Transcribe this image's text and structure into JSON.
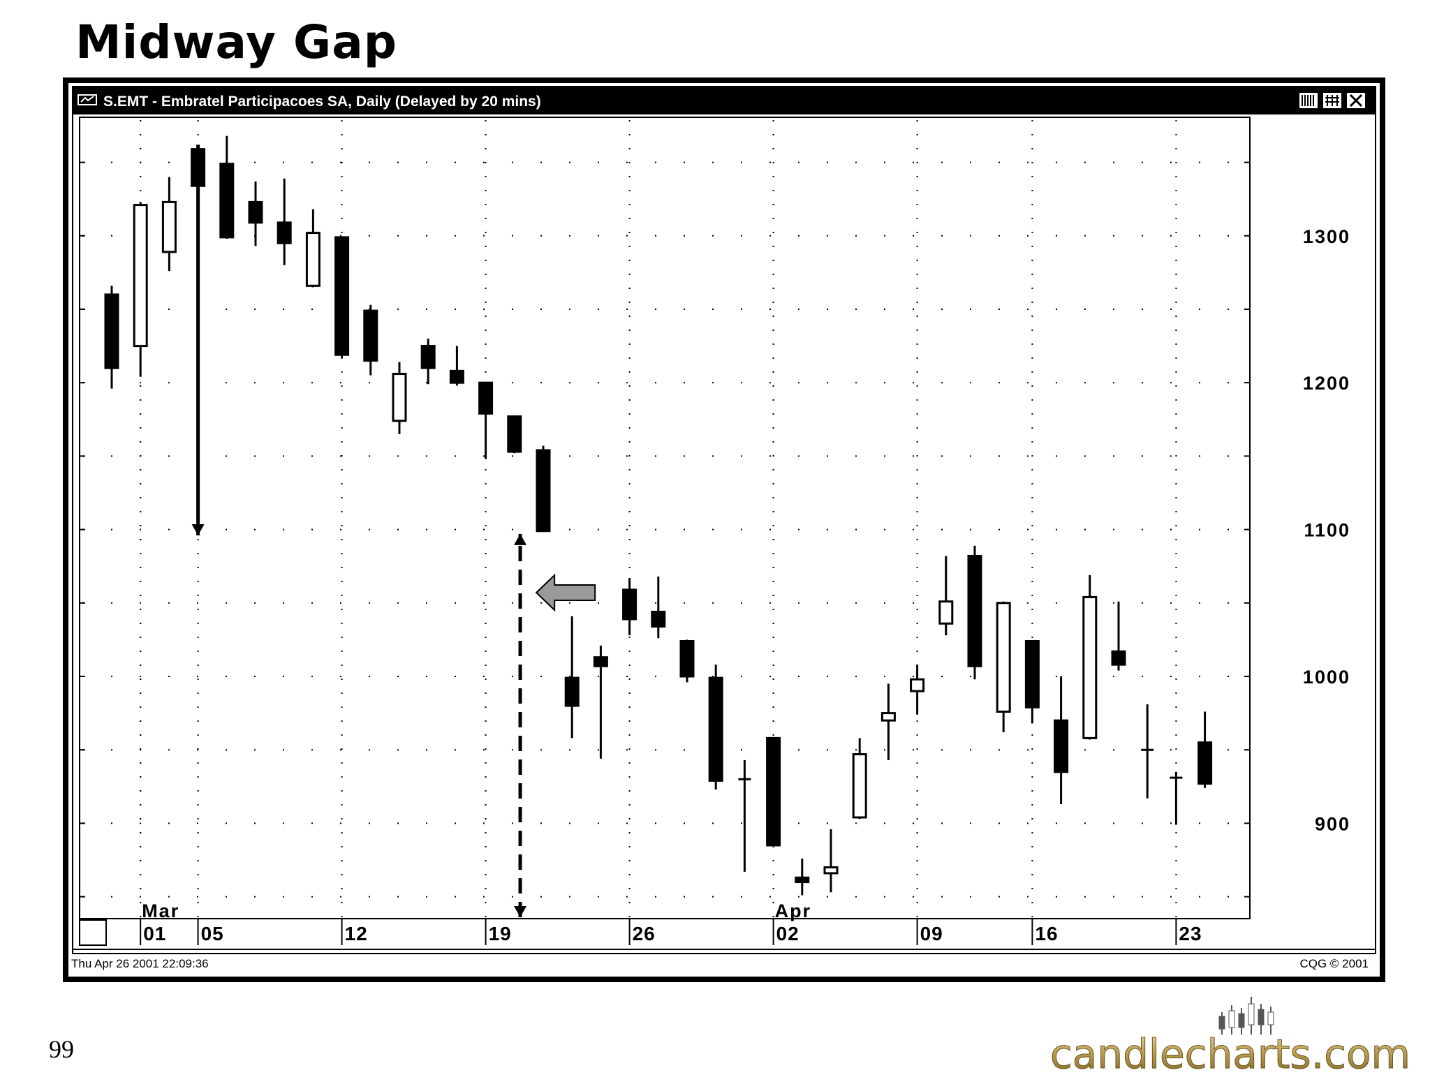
{
  "slide": {
    "title": "Midway Gap",
    "page_number": "99"
  },
  "window": {
    "title": "S.EMT - Embratel Participacoes SA, Daily (Delayed by 20 mins)",
    "timestamp": "Thu Apr 26 2001 22:09:36",
    "copyright": "CQG © 2001",
    "title_icon": "cqg-logo-icon",
    "buttons": [
      "chart-style-button",
      "chart-settings-button",
      "close-window-button"
    ]
  },
  "logo": {
    "text": "candlecharts.com",
    "icon": "candlestick-logo-icon"
  },
  "chart_data": {
    "type": "candlestick",
    "title": "S.EMT - Embratel Participacoes SA, Daily (Delayed by 20 mins)",
    "xlabel": "",
    "ylabel": "",
    "ylim": [
      835,
      1380
    ],
    "y_ticks": [
      900,
      1000,
      1100,
      1200,
      1300
    ],
    "y_tick_labels": [
      "900",
      "1000",
      "1100",
      "1200",
      "1300"
    ],
    "grid": true,
    "x_tick_labels": [
      {
        "label": "01",
        "index": 1
      },
      {
        "label": "05",
        "index": 3
      },
      {
        "label": "12",
        "index": 8
      },
      {
        "label": "19",
        "index": 13
      },
      {
        "label": "26",
        "index": 18
      },
      {
        "label": "02",
        "index": 23
      },
      {
        "label": "09",
        "index": 28
      },
      {
        "label": "16",
        "index": 32
      },
      {
        "label": "23",
        "index": 37
      }
    ],
    "month_labels": [
      {
        "label": "Mar",
        "index": 1
      },
      {
        "label": "Apr",
        "index": 23
      }
    ],
    "candles": [
      {
        "open": 1260,
        "high": 1266,
        "low": 1196,
        "close": 1210
      },
      {
        "open": 1225,
        "high": 1323,
        "low": 1204,
        "close": 1321
      },
      {
        "open": 1289,
        "high": 1340,
        "low": 1276,
        "close": 1323
      },
      {
        "open": 1359,
        "high": 1362,
        "low": 1324,
        "close": 1334
      },
      {
        "open": 1349,
        "high": 1368,
        "low": 1298,
        "close": 1299
      },
      {
        "open": 1323,
        "high": 1337,
        "low": 1293,
        "close": 1309
      },
      {
        "open": 1309,
        "high": 1339,
        "low": 1280,
        "close": 1295
      },
      {
        "open": 1266,
        "high": 1318,
        "low": 1265,
        "close": 1302
      },
      {
        "open": 1299,
        "high": 1299,
        "low": 1217,
        "close": 1219
      },
      {
        "open": 1249,
        "high": 1253,
        "low": 1205,
        "close": 1215
      },
      {
        "open": 1174,
        "high": 1214,
        "low": 1165,
        "close": 1206
      },
      {
        "open": 1225,
        "high": 1230,
        "low": 1199,
        "close": 1210
      },
      {
        "open": 1208,
        "high": 1225,
        "low": 1198,
        "close": 1200
      },
      {
        "open": 1200,
        "high": 1200,
        "low": 1148,
        "close": 1179
      },
      {
        "open": 1177,
        "high": 1177,
        "low": 1152,
        "close": 1153
      },
      {
        "open": 1154,
        "high": 1157,
        "low": 1099,
        "close": 1099
      },
      {
        "open": 999,
        "high": 1041,
        "low": 958,
        "close": 980
      },
      {
        "open": 1013,
        "high": 1021,
        "low": 944,
        "close": 1007
      },
      {
        "open": 1059,
        "high": 1067,
        "low": 1028,
        "close": 1039
      },
      {
        "open": 1044,
        "high": 1068,
        "low": 1026,
        "close": 1034
      },
      {
        "open": 1024,
        "high": 1025,
        "low": 996,
        "close": 1000
      },
      {
        "open": 999,
        "high": 1008,
        "low": 923,
        "close": 929
      },
      {
        "open": 930,
        "high": 943,
        "low": 867,
        "close": 930
      },
      {
        "open": 958,
        "high": 958,
        "low": 885,
        "close": 885
      },
      {
        "open": 863,
        "high": 876,
        "low": 851,
        "close": 860
      },
      {
        "open": 866,
        "high": 896,
        "low": 853,
        "close": 870
      },
      {
        "open": 904,
        "high": 958,
        "low": 903,
        "close": 947
      },
      {
        "open": 970,
        "high": 995,
        "low": 943,
        "close": 975
      },
      {
        "open": 990,
        "high": 1008,
        "low": 974,
        "close": 998
      },
      {
        "open": 1036,
        "high": 1082,
        "low": 1028,
        "close": 1051
      },
      {
        "open": 1082,
        "high": 1089,
        "low": 998,
        "close": 1007
      },
      {
        "open": 976,
        "high": 1051,
        "low": 962,
        "close": 1050
      },
      {
        "open": 1024,
        "high": 1024,
        "low": 968,
        "close": 979
      },
      {
        "open": 970,
        "high": 1000,
        "low": 913,
        "close": 935
      },
      {
        "open": 958,
        "high": 1069,
        "low": 957,
        "close": 1054
      },
      {
        "open": 1017,
        "high": 1051,
        "low": 1004,
        "close": 1008
      },
      {
        "open": 950,
        "high": 981,
        "low": 917,
        "close": 950
      },
      {
        "open": 931,
        "high": 935,
        "low": 899,
        "close": 931
      },
      {
        "open": 955,
        "high": 976,
        "low": 924,
        "close": 927
      }
    ],
    "annotations": [
      {
        "type": "arrow",
        "style": "solid",
        "from": {
          "index": 3,
          "value": 1362
        },
        "to": {
          "index": 3,
          "value": 1096
        }
      },
      {
        "type": "arrow",
        "style": "dashed",
        "from": {
          "index": 14.2,
          "value": 836
        },
        "to": {
          "index": 14.2,
          "value": 1097
        }
      },
      {
        "type": "block-arrow",
        "color": "#9a9a9a",
        "pointing": "left",
        "at": {
          "index": 16.8,
          "value": 1067
        }
      }
    ]
  }
}
